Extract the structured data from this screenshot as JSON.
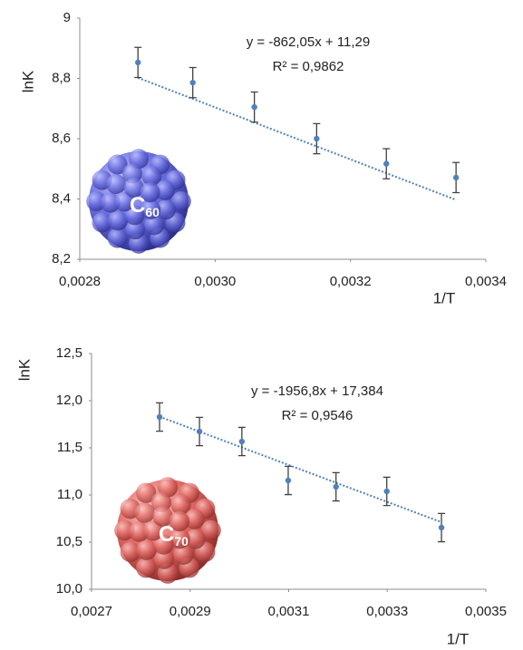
{
  "chart_data": [
    {
      "type": "scatter",
      "x": [
        0.002886,
        0.002967,
        0.003058,
        0.00315,
        0.003253,
        0.003356
      ],
      "values": [
        8.853,
        8.786,
        8.705,
        8.6,
        8.517,
        8.471
      ],
      "errors": [
        0.05,
        0.05,
        0.05,
        0.05,
        0.05,
        0.05
      ],
      "color": "#4f81bd",
      "xlim": [
        0.0028,
        0.0034
      ],
      "xticks": [
        {
          "value": 0.0028,
          "label": "0,0028"
        },
        {
          "value": 0.003,
          "label": "0,0030"
        },
        {
          "value": 0.0032,
          "label": "0,0032"
        },
        {
          "value": 0.0034,
          "label": "0,0034"
        }
      ],
      "ylim": [
        8.2,
        9
      ],
      "yticks": [
        {
          "value": 8.2,
          "label": "8,2"
        },
        {
          "value": 8.4,
          "label": "8,4"
        },
        {
          "value": 8.6,
          "label": "8,6"
        },
        {
          "value": 8.8,
          "label": "8,8"
        },
        9
      ],
      "xlabel": "1/T",
      "ylabel": "lnK",
      "trendline": {
        "slope": -862.05,
        "intercept": 11.29,
        "label": "y = -862,05x + 11,29",
        "r2_label": "R² = 0,9862"
      },
      "molecule": {
        "label": "C",
        "subscript": "60",
        "color": "blue"
      }
    },
    {
      "type": "scatter",
      "x": [
        0.002838,
        0.002919,
        0.003005,
        0.003099,
        0.003196,
        0.003299,
        0.00341
      ],
      "values": [
        11.827,
        11.673,
        11.567,
        11.154,
        11.087,
        11.038,
        10.654
      ],
      "errors": [
        0.15,
        0.15,
        0.15,
        0.15,
        0.15,
        0.15,
        0.15
      ],
      "color": "#4f81bd",
      "xlim": [
        0.0027,
        0.0035
      ],
      "xticks": [
        {
          "value": 0.0027,
          "label": "0,0027"
        },
        {
          "value": 0.0029,
          "label": "0,0029"
        },
        {
          "value": 0.0031,
          "label": "0,0031"
        },
        {
          "value": 0.0033,
          "label": "0,0033"
        },
        {
          "value": 0.0035,
          "label": "0,0035"
        }
      ],
      "ylim": [
        10,
        12.5
      ],
      "yticks": [
        {
          "value": 10,
          "label": "10,0"
        },
        {
          "value": 10.5,
          "label": "10,5"
        },
        {
          "value": 11,
          "label": "11,0"
        },
        {
          "value": 11.5,
          "label": "11,5"
        },
        {
          "value": 12,
          "label": "12,0"
        },
        {
          "value": 12.5,
          "label": "12,5"
        }
      ],
      "xlabel": "1/T",
      "ylabel": "lnK",
      "trendline": {
        "slope": -1956.8,
        "intercept": 17.384,
        "label": "y = -1956,8x + 17,384",
        "r2_label": "R² = 0,9546"
      },
      "molecule": {
        "label": "C",
        "subscript": "70",
        "color": "red"
      }
    }
  ]
}
